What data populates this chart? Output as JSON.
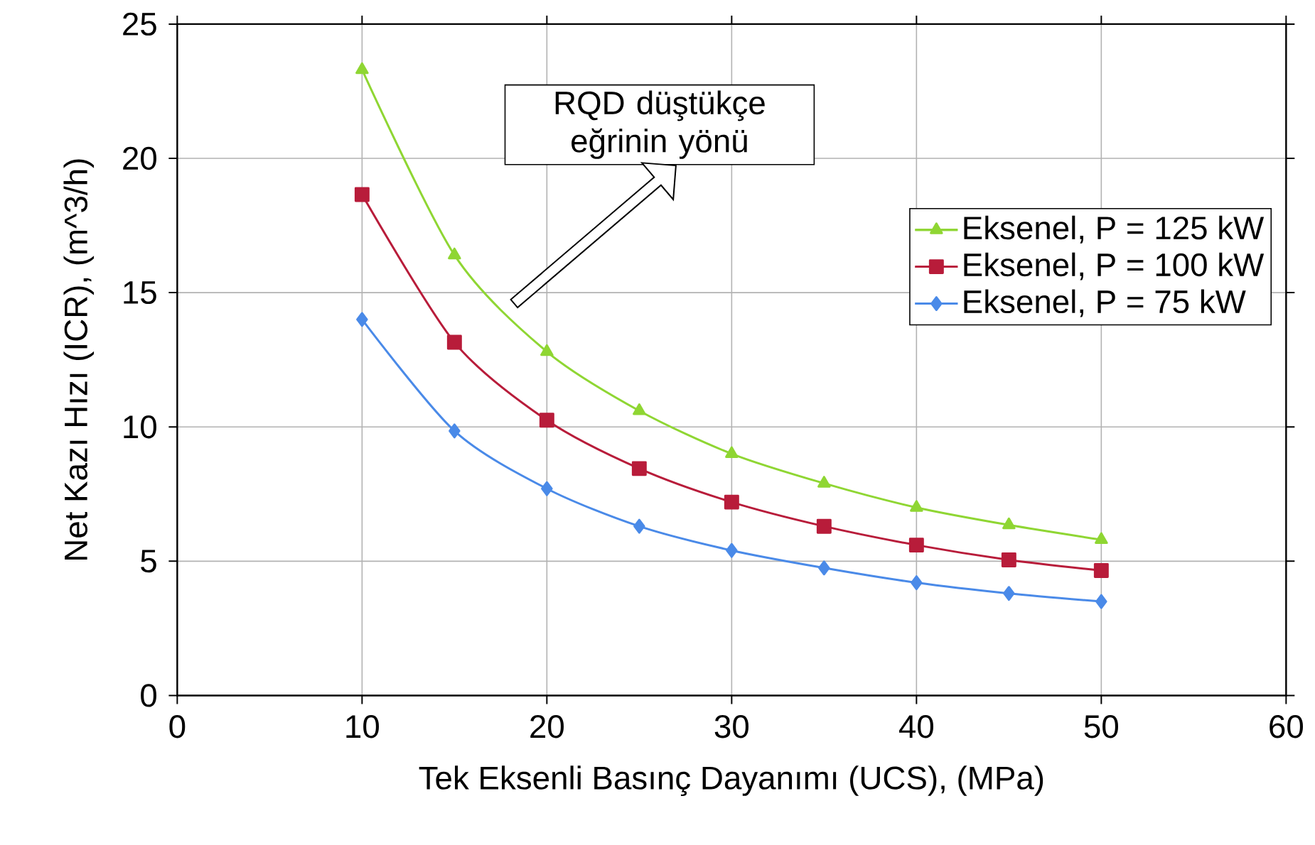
{
  "chart_data": {
    "type": "line",
    "xlabel": "Tek Eksenli Basınç Dayanımı (UCS), (MPa)",
    "ylabel": "Net Kazı Hızı (ICR), (m^3/h)",
    "annotations": [
      "RQD düştükçe eğrinin yönü"
    ],
    "x": [
      10,
      15,
      20,
      25,
      30,
      35,
      40,
      45,
      50
    ],
    "series": [
      {
        "name": "Eksenel, P = 125 kW",
        "color": "#8fd633",
        "marker": "triangle",
        "values": [
          23.3,
          16.4,
          12.8,
          10.6,
          9.0,
          7.9,
          7.0,
          6.35,
          5.8
        ]
      },
      {
        "name": "Eksenel, P = 100 kW",
        "color": "#b81c3a",
        "marker": "square",
        "values": [
          18.65,
          13.15,
          10.25,
          8.45,
          7.2,
          6.3,
          5.6,
          5.05,
          4.65
        ]
      },
      {
        "name": "Eksenel, P = 75 kW",
        "color": "#4a8ae8",
        "marker": "diamond",
        "values": [
          14.0,
          9.85,
          7.7,
          6.3,
          5.4,
          4.75,
          4.2,
          3.8,
          3.5
        ]
      }
    ],
    "xlim": [
      0,
      60
    ],
    "xticks": [
      0,
      10,
      20,
      30,
      40,
      50,
      60
    ],
    "ylim": [
      0,
      25
    ],
    "yticks": [
      0,
      5,
      10,
      15,
      20,
      25
    ],
    "grid": true,
    "legend": "top right"
  }
}
